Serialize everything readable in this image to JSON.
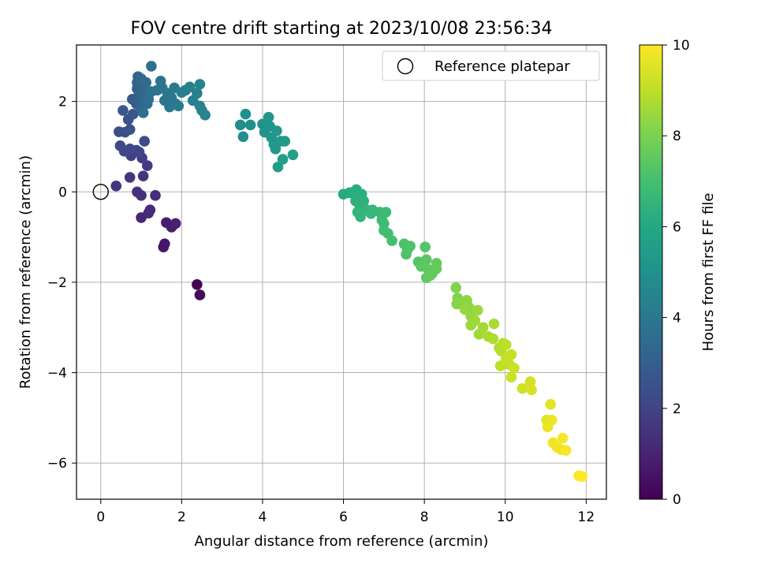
{
  "chart_data": {
    "type": "scatter",
    "title": "FOV centre drift starting at 2023/10/08 23:56:34",
    "xlabel": "Angular distance from reference (arcmin)",
    "ylabel": "Rotation from reference (arcmin)",
    "xlim": [
      -0.6,
      12.5
    ],
    "ylim": [
      -6.8,
      3.25
    ],
    "xticks": [
      0,
      2,
      4,
      6,
      8,
      10,
      12
    ],
    "yticks": [
      -6,
      -4,
      -2,
      0,
      2
    ],
    "grid": true,
    "legend": {
      "position": "top-right",
      "entries": [
        {
          "label": "Reference platepar",
          "marker": "open-circle"
        }
      ]
    },
    "reference_point": {
      "x": 0,
      "y": 0
    },
    "colorbar": {
      "label": "Hours from first FF file",
      "colormap": "viridis",
      "range": [
        0,
        10
      ],
      "ticks": [
        0,
        2,
        4,
        6,
        8,
        10
      ]
    },
    "points": [
      {
        "x": 2.38,
        "y": -2.05,
        "c": 0.1
      },
      {
        "x": 2.45,
        "y": -2.28,
        "c": 0.2
      },
      {
        "x": 1.55,
        "y": -1.22,
        "c": 0.6
      },
      {
        "x": 1.58,
        "y": -1.15,
        "c": 0.6
      },
      {
        "x": 1.62,
        "y": -0.68,
        "c": 0.8
      },
      {
        "x": 1.75,
        "y": -0.78,
        "c": 0.8
      },
      {
        "x": 1.85,
        "y": -0.7,
        "c": 0.9
      },
      {
        "x": 1.0,
        "y": -0.57,
        "c": 1.1
      },
      {
        "x": 1.22,
        "y": -0.4,
        "c": 1.2
      },
      {
        "x": 1.18,
        "y": -0.47,
        "c": 1.2
      },
      {
        "x": 1.35,
        "y": -0.08,
        "c": 1.3
      },
      {
        "x": 0.9,
        "y": 0.0,
        "c": 1.4
      },
      {
        "x": 1.0,
        "y": -0.08,
        "c": 1.4
      },
      {
        "x": 0.38,
        "y": 0.13,
        "c": 1.5
      },
      {
        "x": 0.72,
        "y": 0.32,
        "c": 1.6
      },
      {
        "x": 1.05,
        "y": 0.35,
        "c": 1.6
      },
      {
        "x": 1.15,
        "y": 0.58,
        "c": 1.7
      },
      {
        "x": 1.02,
        "y": 0.75,
        "c": 1.8
      },
      {
        "x": 0.75,
        "y": 0.8,
        "c": 1.9
      },
      {
        "x": 0.88,
        "y": 0.92,
        "c": 1.9
      },
      {
        "x": 0.95,
        "y": 0.88,
        "c": 2.0
      },
      {
        "x": 0.58,
        "y": 0.9,
        "c": 2.1
      },
      {
        "x": 0.48,
        "y": 1.02,
        "c": 2.2
      },
      {
        "x": 0.72,
        "y": 0.95,
        "c": 2.2
      },
      {
        "x": 1.08,
        "y": 1.12,
        "c": 2.3
      },
      {
        "x": 0.45,
        "y": 1.33,
        "c": 2.4
      },
      {
        "x": 0.6,
        "y": 1.32,
        "c": 2.4
      },
      {
        "x": 0.72,
        "y": 1.38,
        "c": 2.5
      },
      {
        "x": 0.68,
        "y": 1.6,
        "c": 2.6
      },
      {
        "x": 0.55,
        "y": 1.8,
        "c": 2.7
      },
      {
        "x": 0.8,
        "y": 1.72,
        "c": 2.7
      },
      {
        "x": 0.78,
        "y": 2.05,
        "c": 2.8
      },
      {
        "x": 0.88,
        "y": 1.95,
        "c": 2.9
      },
      {
        "x": 0.92,
        "y": 2.1,
        "c": 3.0
      },
      {
        "x": 0.9,
        "y": 2.28,
        "c": 3.0
      },
      {
        "x": 0.9,
        "y": 2.42,
        "c": 3.1
      },
      {
        "x": 0.92,
        "y": 2.55,
        "c": 3.1
      },
      {
        "x": 1.0,
        "y": 1.85,
        "c": 3.2
      },
      {
        "x": 1.05,
        "y": 2.0,
        "c": 3.2
      },
      {
        "x": 1.02,
        "y": 2.18,
        "c": 3.3
      },
      {
        "x": 1.1,
        "y": 2.12,
        "c": 3.3
      },
      {
        "x": 1.0,
        "y": 2.5,
        "c": 3.4
      },
      {
        "x": 1.08,
        "y": 2.32,
        "c": 3.4
      },
      {
        "x": 1.12,
        "y": 2.42,
        "c": 3.5
      },
      {
        "x": 1.15,
        "y": 1.95,
        "c": 3.5
      },
      {
        "x": 1.18,
        "y": 2.05,
        "c": 3.6
      },
      {
        "x": 1.05,
        "y": 1.75,
        "c": 3.6
      },
      {
        "x": 1.25,
        "y": 2.78,
        "c": 3.7
      },
      {
        "x": 1.25,
        "y": 2.22,
        "c": 3.7
      },
      {
        "x": 1.4,
        "y": 2.25,
        "c": 3.8
      },
      {
        "x": 1.48,
        "y": 2.45,
        "c": 3.8
      },
      {
        "x": 1.52,
        "y": 2.3,
        "c": 3.9
      },
      {
        "x": 1.58,
        "y": 2.02,
        "c": 3.9
      },
      {
        "x": 1.65,
        "y": 2.18,
        "c": 3.9
      },
      {
        "x": 1.7,
        "y": 1.88,
        "c": 4.0
      },
      {
        "x": 1.75,
        "y": 2.08,
        "c": 4.0
      },
      {
        "x": 1.82,
        "y": 2.3,
        "c": 4.1
      },
      {
        "x": 1.85,
        "y": 1.95,
        "c": 4.1
      },
      {
        "x": 1.92,
        "y": 1.9,
        "c": 4.1
      },
      {
        "x": 2.0,
        "y": 2.2,
        "c": 4.2
      },
      {
        "x": 2.1,
        "y": 2.25,
        "c": 4.2
      },
      {
        "x": 2.2,
        "y": 2.32,
        "c": 4.3
      },
      {
        "x": 2.28,
        "y": 2.02,
        "c": 4.3
      },
      {
        "x": 2.38,
        "y": 2.18,
        "c": 4.3
      },
      {
        "x": 2.45,
        "y": 2.38,
        "c": 4.4
      },
      {
        "x": 2.45,
        "y": 1.9,
        "c": 4.4
      },
      {
        "x": 2.5,
        "y": 1.8,
        "c": 4.4
      },
      {
        "x": 2.58,
        "y": 1.7,
        "c": 4.5
      },
      {
        "x": 3.45,
        "y": 1.48,
        "c": 4.9
      },
      {
        "x": 3.52,
        "y": 1.22,
        "c": 4.9
      },
      {
        "x": 3.58,
        "y": 1.72,
        "c": 5.0
      },
      {
        "x": 3.7,
        "y": 1.48,
        "c": 5.0
      },
      {
        "x": 4.0,
        "y": 1.5,
        "c": 5.1
      },
      {
        "x": 4.05,
        "y": 1.32,
        "c": 5.1
      },
      {
        "x": 4.15,
        "y": 1.65,
        "c": 5.2
      },
      {
        "x": 4.18,
        "y": 1.45,
        "c": 5.2
      },
      {
        "x": 4.22,
        "y": 1.2,
        "c": 5.2
      },
      {
        "x": 4.28,
        "y": 1.05,
        "c": 5.3
      },
      {
        "x": 4.32,
        "y": 0.95,
        "c": 5.3
      },
      {
        "x": 4.35,
        "y": 1.35,
        "c": 5.3
      },
      {
        "x": 4.45,
        "y": 1.12,
        "c": 5.4
      },
      {
        "x": 4.55,
        "y": 1.12,
        "c": 5.4
      },
      {
        "x": 4.38,
        "y": 0.55,
        "c": 5.5
      },
      {
        "x": 4.5,
        "y": 0.72,
        "c": 5.5
      },
      {
        "x": 4.75,
        "y": 0.82,
        "c": 5.6
      },
      {
        "x": 6.0,
        "y": -0.05,
        "c": 6.1
      },
      {
        "x": 6.15,
        "y": -0.02,
        "c": 6.1
      },
      {
        "x": 6.25,
        "y": 0.0,
        "c": 6.2
      },
      {
        "x": 6.32,
        "y": 0.05,
        "c": 6.2
      },
      {
        "x": 6.38,
        "y": -0.1,
        "c": 6.3
      },
      {
        "x": 6.45,
        "y": -0.05,
        "c": 6.3
      },
      {
        "x": 6.3,
        "y": -0.2,
        "c": 6.3
      },
      {
        "x": 6.5,
        "y": -0.2,
        "c": 6.4
      },
      {
        "x": 6.4,
        "y": -0.3,
        "c": 6.4
      },
      {
        "x": 6.35,
        "y": -0.45,
        "c": 6.5
      },
      {
        "x": 6.42,
        "y": -0.55,
        "c": 6.5
      },
      {
        "x": 6.58,
        "y": -0.4,
        "c": 6.5
      },
      {
        "x": 6.68,
        "y": -0.48,
        "c": 6.6
      },
      {
        "x": 6.72,
        "y": -0.4,
        "c": 6.6
      },
      {
        "x": 6.9,
        "y": -0.45,
        "c": 6.7
      },
      {
        "x": 6.95,
        "y": -0.62,
        "c": 6.7
      },
      {
        "x": 7.0,
        "y": -0.7,
        "c": 6.8
      },
      {
        "x": 7.05,
        "y": -0.45,
        "c": 6.8
      },
      {
        "x": 7.0,
        "y": -0.85,
        "c": 6.9
      },
      {
        "x": 7.1,
        "y": -0.92,
        "c": 6.9
      },
      {
        "x": 7.2,
        "y": -1.08,
        "c": 7.0
      },
      {
        "x": 7.5,
        "y": -1.15,
        "c": 7.1
      },
      {
        "x": 7.58,
        "y": -1.28,
        "c": 7.1
      },
      {
        "x": 7.55,
        "y": -1.38,
        "c": 7.2
      },
      {
        "x": 7.65,
        "y": -1.2,
        "c": 7.2
      },
      {
        "x": 8.02,
        "y": -1.22,
        "c": 7.3
      },
      {
        "x": 7.85,
        "y": -1.55,
        "c": 7.3
      },
      {
        "x": 7.92,
        "y": -1.65,
        "c": 7.4
      },
      {
        "x": 8.05,
        "y": -1.5,
        "c": 7.4
      },
      {
        "x": 8.1,
        "y": -1.72,
        "c": 7.5
      },
      {
        "x": 8.2,
        "y": -1.8,
        "c": 7.5
      },
      {
        "x": 8.05,
        "y": -1.9,
        "c": 7.5
      },
      {
        "x": 8.15,
        "y": -1.85,
        "c": 7.6
      },
      {
        "x": 8.3,
        "y": -1.58,
        "c": 7.6
      },
      {
        "x": 8.3,
        "y": -1.7,
        "c": 7.6
      },
      {
        "x": 8.78,
        "y": -2.12,
        "c": 8.1
      },
      {
        "x": 8.82,
        "y": -2.35,
        "c": 8.1
      },
      {
        "x": 8.8,
        "y": -2.48,
        "c": 8.2
      },
      {
        "x": 8.9,
        "y": -2.45,
        "c": 8.2
      },
      {
        "x": 9.05,
        "y": -2.4,
        "c": 8.3
      },
      {
        "x": 9.1,
        "y": -2.55,
        "c": 8.3
      },
      {
        "x": 9.0,
        "y": -2.6,
        "c": 8.4
      },
      {
        "x": 9.15,
        "y": -2.75,
        "c": 8.4
      },
      {
        "x": 9.25,
        "y": -2.85,
        "c": 8.5
      },
      {
        "x": 9.32,
        "y": -2.62,
        "c": 8.5
      },
      {
        "x": 9.15,
        "y": -2.95,
        "c": 8.5
      },
      {
        "x": 9.35,
        "y": -3.15,
        "c": 8.6
      },
      {
        "x": 9.45,
        "y": -3.0,
        "c": 8.6
      },
      {
        "x": 9.58,
        "y": -3.2,
        "c": 8.7
      },
      {
        "x": 9.72,
        "y": -2.92,
        "c": 8.7
      },
      {
        "x": 9.7,
        "y": -3.25,
        "c": 8.8
      },
      {
        "x": 9.85,
        "y": -3.45,
        "c": 8.8
      },
      {
        "x": 9.9,
        "y": -3.52,
        "c": 8.9
      },
      {
        "x": 9.95,
        "y": -3.35,
        "c": 8.9
      },
      {
        "x": 10.02,
        "y": -3.38,
        "c": 9.0
      },
      {
        "x": 9.88,
        "y": -3.85,
        "c": 9.0
      },
      {
        "x": 10.02,
        "y": -3.7,
        "c": 9.1
      },
      {
        "x": 10.1,
        "y": -3.82,
        "c": 9.1
      },
      {
        "x": 10.15,
        "y": -3.6,
        "c": 9.1
      },
      {
        "x": 10.22,
        "y": -3.9,
        "c": 9.2
      },
      {
        "x": 10.15,
        "y": -4.1,
        "c": 9.2
      },
      {
        "x": 10.42,
        "y": -4.35,
        "c": 9.3
      },
      {
        "x": 10.62,
        "y": -4.2,
        "c": 9.3
      },
      {
        "x": 10.65,
        "y": -4.38,
        "c": 9.4
      },
      {
        "x": 11.12,
        "y": -4.7,
        "c": 9.6
      },
      {
        "x": 11.02,
        "y": -5.05,
        "c": 9.6
      },
      {
        "x": 11.05,
        "y": -5.2,
        "c": 9.7
      },
      {
        "x": 11.15,
        "y": -5.05,
        "c": 9.7
      },
      {
        "x": 11.18,
        "y": -5.55,
        "c": 9.8
      },
      {
        "x": 11.28,
        "y": -5.65,
        "c": 9.8
      },
      {
        "x": 11.38,
        "y": -5.7,
        "c": 9.8
      },
      {
        "x": 11.42,
        "y": -5.45,
        "c": 9.9
      },
      {
        "x": 11.5,
        "y": -5.72,
        "c": 9.9
      },
      {
        "x": 11.82,
        "y": -6.28,
        "c": 10.0
      },
      {
        "x": 11.9,
        "y": -6.3,
        "c": 10.0
      }
    ]
  }
}
